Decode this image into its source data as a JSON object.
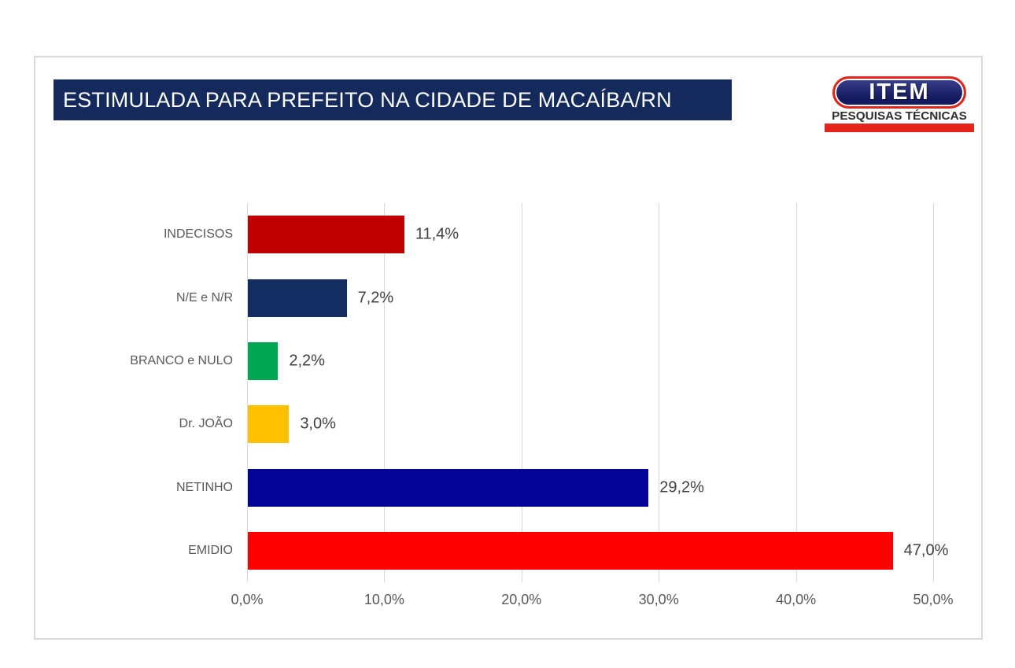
{
  "header": {
    "title": "ESTIMULADA PARA PREFEITO NA CIDADE DE MACAÍBA/RN",
    "bg_color": "#142a5c",
    "text_color": "#ffffff"
  },
  "logo": {
    "name": "ITEM",
    "subtitle": "PESQUISAS TÉCNICAS",
    "colors": {
      "pill_top": "#3c418f",
      "pill_bottom": "#141a5e",
      "ring": "#e3251c",
      "underline": "#e3251c",
      "subtitle_text": "#2d2d2d"
    }
  },
  "chart_data": {
    "type": "bar",
    "orientation": "horizontal",
    "title": "ESTIMULADA PARA PREFEITO NA CIDADE DE MACAÍBA/RN",
    "categories": [
      "INDECISOS",
      "N/E e N/R",
      "BRANCO e NULO",
      "Dr. JOÃO",
      "NETINHO",
      "EMIDIO"
    ],
    "values": [
      11.4,
      7.2,
      2.2,
      3.0,
      29.2,
      47.0
    ],
    "value_labels": [
      "11,4%",
      "7,2%",
      "2,2%",
      "3,0%",
      "29,2%",
      "47,0%"
    ],
    "bar_colors": [
      "#c00000",
      "#132c62",
      "#00a651",
      "#ffc000",
      "#040499",
      "#fe0000"
    ],
    "x_ticks": [
      "0,0%",
      "10,0%",
      "20,0%",
      "30,0%",
      "40,0%",
      "50,0%"
    ],
    "x_tick_values": [
      0,
      10,
      20,
      30,
      40,
      50
    ],
    "xlim": [
      0,
      50
    ],
    "xlabel": "",
    "ylabel": "",
    "grid": true,
    "gridline_color": "#d9d9d9",
    "legend": "none",
    "category_label_color": "#595959",
    "value_label_color": "#404040",
    "tick_label_color": "#595959"
  }
}
